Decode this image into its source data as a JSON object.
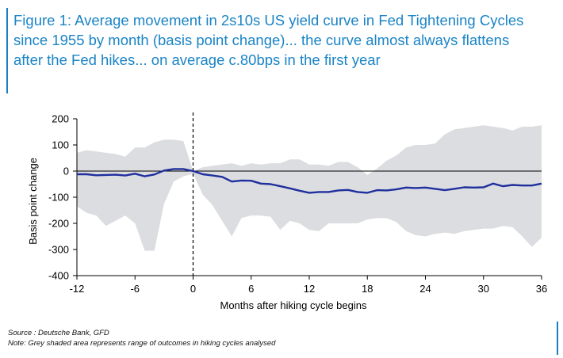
{
  "title_lines": [
    "Figure 1: Average movement in 2s10s US yield curve in Fed Tightening Cycles",
    "since 1955 by month (basis point change)... the curve almost always flattens",
    "after the Fed hikes... on average c.80bps in the first year"
  ],
  "source": "Source : Deutsche Bank, GFD",
  "note": "Note: Grey shaded area represents range of outcomes in hiking cycles analysed",
  "colors": {
    "accent": "#1a84c6",
    "line": "#1f2f9e",
    "band": "#dcdde0"
  },
  "chart_data": {
    "type": "area",
    "xlabel": "Months after hiking cycle begins",
    "ylabel": "Basis point change",
    "xlim": [
      -12,
      36
    ],
    "ylim": [
      -400,
      200
    ],
    "xticks": [
      -12,
      -6,
      0,
      6,
      12,
      18,
      24,
      30,
      36
    ],
    "xtick_labels": [
      "-12",
      "-6",
      "0",
      "6",
      "12",
      "18",
      "24",
      "30",
      "36"
    ],
    "yticks": [
      200,
      100,
      0,
      -100,
      -200,
      -300,
      -400
    ],
    "ytick_labels": [
      "200",
      "100",
      "0",
      "-100",
      "-200",
      "-300",
      "-400"
    ],
    "vertical_line_x": 0,
    "x": [
      -12,
      -11,
      -10,
      -9,
      -8,
      -7,
      -6,
      -5,
      -4,
      -3,
      -2,
      -1,
      0,
      1,
      2,
      3,
      4,
      5,
      6,
      7,
      8,
      9,
      10,
      11,
      12,
      13,
      14,
      15,
      16,
      17,
      18,
      19,
      20,
      21,
      22,
      23,
      24,
      25,
      26,
      27,
      28,
      29,
      30,
      31,
      32,
      33,
      34,
      35,
      36
    ],
    "series": [
      {
        "values": [
          -12,
          -12,
          -16,
          -15,
          -14,
          -17,
          -10,
          -20,
          -13,
          2,
          8,
          8,
          0,
          -12,
          -17,
          -22,
          -40,
          -36,
          -37,
          -48,
          -50,
          -58,
          -66,
          -75,
          -83,
          -80,
          -80,
          -74,
          -72,
          -80,
          -83,
          -73,
          -74,
          -70,
          -63,
          -65,
          -63,
          -68,
          -73,
          -68,
          -62,
          -63,
          -62,
          -48,
          -58,
          -53,
          -55,
          -55,
          -48
        ]
      }
    ],
    "band": {
      "label": "range of outcomes",
      "upper": [
        70,
        80,
        75,
        70,
        65,
        55,
        90,
        90,
        110,
        120,
        120,
        115,
        0,
        15,
        20,
        25,
        30,
        20,
        30,
        25,
        30,
        30,
        45,
        45,
        25,
        25,
        20,
        35,
        35,
        15,
        -15,
        10,
        40,
        60,
        90,
        100,
        100,
        105,
        140,
        160,
        165,
        170,
        175,
        170,
        165,
        155,
        170,
        170,
        175
      ],
      "lower": [
        -135,
        -160,
        -170,
        -210,
        -190,
        -170,
        -200,
        -305,
        -305,
        -125,
        -40,
        -20,
        -10,
        -90,
        -130,
        -190,
        -250,
        -180,
        -170,
        -170,
        -175,
        -225,
        -190,
        -200,
        -225,
        -230,
        -200,
        -200,
        -200,
        -200,
        -185,
        -180,
        -180,
        -195,
        -230,
        -245,
        -250,
        -240,
        -235,
        -240,
        -230,
        -225,
        -220,
        -220,
        -210,
        -215,
        -250,
        -290,
        -255
      ]
    }
  }
}
